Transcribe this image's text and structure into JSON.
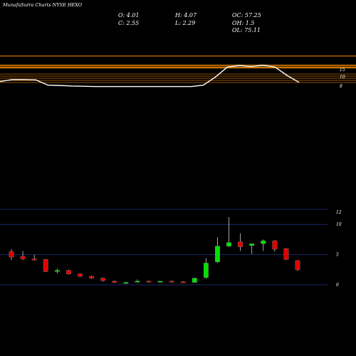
{
  "header": {
    "title": "MunafaSutra Charts NYSE HEXO"
  },
  "ohlc_readout": {
    "open": "O: 4.01",
    "close": "C: 2.55",
    "high": "H: 4.07",
    "low": "L: 2.29",
    "oc": "OC: 57.25",
    "oh": "OH: 1.5",
    "ol": "OL: 75.11"
  },
  "colors": {
    "background": "#000000",
    "up": "#00e000",
    "down": "#e00000",
    "line": "#ffffff",
    "bands": "#e08000",
    "grid": "#1a2a6a"
  },
  "chart_data": [
    {
      "type": "line",
      "panel": "indicator",
      "title": "",
      "y_ticks": [
        "15",
        "10",
        "8"
      ],
      "ylim": [
        0,
        18
      ],
      "x": [
        0,
        1,
        2,
        3,
        4,
        5,
        6,
        7,
        8,
        9,
        10,
        11,
        12,
        13,
        14,
        15,
        16,
        17,
        18,
        19,
        20,
        21,
        22,
        23,
        24,
        25
      ],
      "series": [
        {
          "values": [
            8.6,
            9.3,
            9.3,
            9.2,
            7.3,
            7.2,
            7.0,
            6.9,
            6.8,
            6.8,
            6.8,
            6.8,
            6.8,
            6.8,
            6.8,
            6.8,
            6.8,
            7.3,
            10.2,
            13.8,
            14.4,
            14.0,
            14.5,
            13.8,
            10.8,
            8.3
          ]
        }
      ],
      "reference_lines": [
        15,
        14.6,
        14.2,
        13.8,
        13.5
      ]
    },
    {
      "type": "candlestick",
      "panel": "price",
      "title": "",
      "y_ticks": [
        "12",
        "10",
        "5",
        "0"
      ],
      "ylim": [
        0,
        12.5
      ],
      "candles": [
        {
          "o": 5.5,
          "h": 5.9,
          "l": 4.1,
          "c": 4.6
        },
        {
          "o": 4.7,
          "h": 5.6,
          "l": 4.1,
          "c": 4.3
        },
        {
          "o": 4.3,
          "h": 5.0,
          "l": 4.0,
          "c": 4.1
        },
        {
          "o": 4.2,
          "h": 4.3,
          "l": 2.1,
          "c": 2.2
        },
        {
          "o": 2.2,
          "h": 2.7,
          "l": 1.9,
          "c": 2.4
        },
        {
          "o": 2.4,
          "h": 2.5,
          "l": 1.7,
          "c": 1.8
        },
        {
          "o": 1.8,
          "h": 1.9,
          "l": 1.3,
          "c": 1.4
        },
        {
          "o": 1.4,
          "h": 1.5,
          "l": 1.0,
          "c": 1.1
        },
        {
          "o": 1.1,
          "h": 1.2,
          "l": 0.5,
          "c": 0.7
        },
        {
          "o": 0.6,
          "h": 0.7,
          "l": 0.3,
          "c": 0.4
        },
        {
          "o": 0.3,
          "h": 0.5,
          "l": 0.2,
          "c": 0.4
        },
        {
          "o": 0.5,
          "h": 0.9,
          "l": 0.4,
          "c": 0.6
        },
        {
          "o": 0.6,
          "h": 0.7,
          "l": 0.4,
          "c": 0.5
        },
        {
          "o": 0.5,
          "h": 0.6,
          "l": 0.4,
          "c": 0.6
        },
        {
          "o": 0.6,
          "h": 0.7,
          "l": 0.4,
          "c": 0.5
        },
        {
          "o": 0.5,
          "h": 0.6,
          "l": 0.3,
          "c": 0.4
        },
        {
          "o": 0.4,
          "h": 1.2,
          "l": 0.4,
          "c": 1.1
        },
        {
          "o": 1.2,
          "h": 4.4,
          "l": 1.0,
          "c": 3.6
        },
        {
          "o": 3.8,
          "h": 7.9,
          "l": 3.6,
          "c": 6.4
        },
        {
          "o": 6.4,
          "h": 11.2,
          "l": 6.3,
          "c": 7.0
        },
        {
          "o": 7.1,
          "h": 8.5,
          "l": 5.6,
          "c": 6.3
        },
        {
          "o": 6.5,
          "h": 6.7,
          "l": 5.1,
          "c": 6.8
        },
        {
          "o": 6.8,
          "h": 7.5,
          "l": 5.6,
          "c": 7.3
        },
        {
          "o": 7.3,
          "h": 7.4,
          "l": 5.5,
          "c": 5.9
        },
        {
          "o": 6.0,
          "h": 6.1,
          "l": 4.1,
          "c": 4.2
        },
        {
          "o": 4.0,
          "h": 4.1,
          "l": 2.3,
          "c": 2.5
        }
      ]
    }
  ]
}
